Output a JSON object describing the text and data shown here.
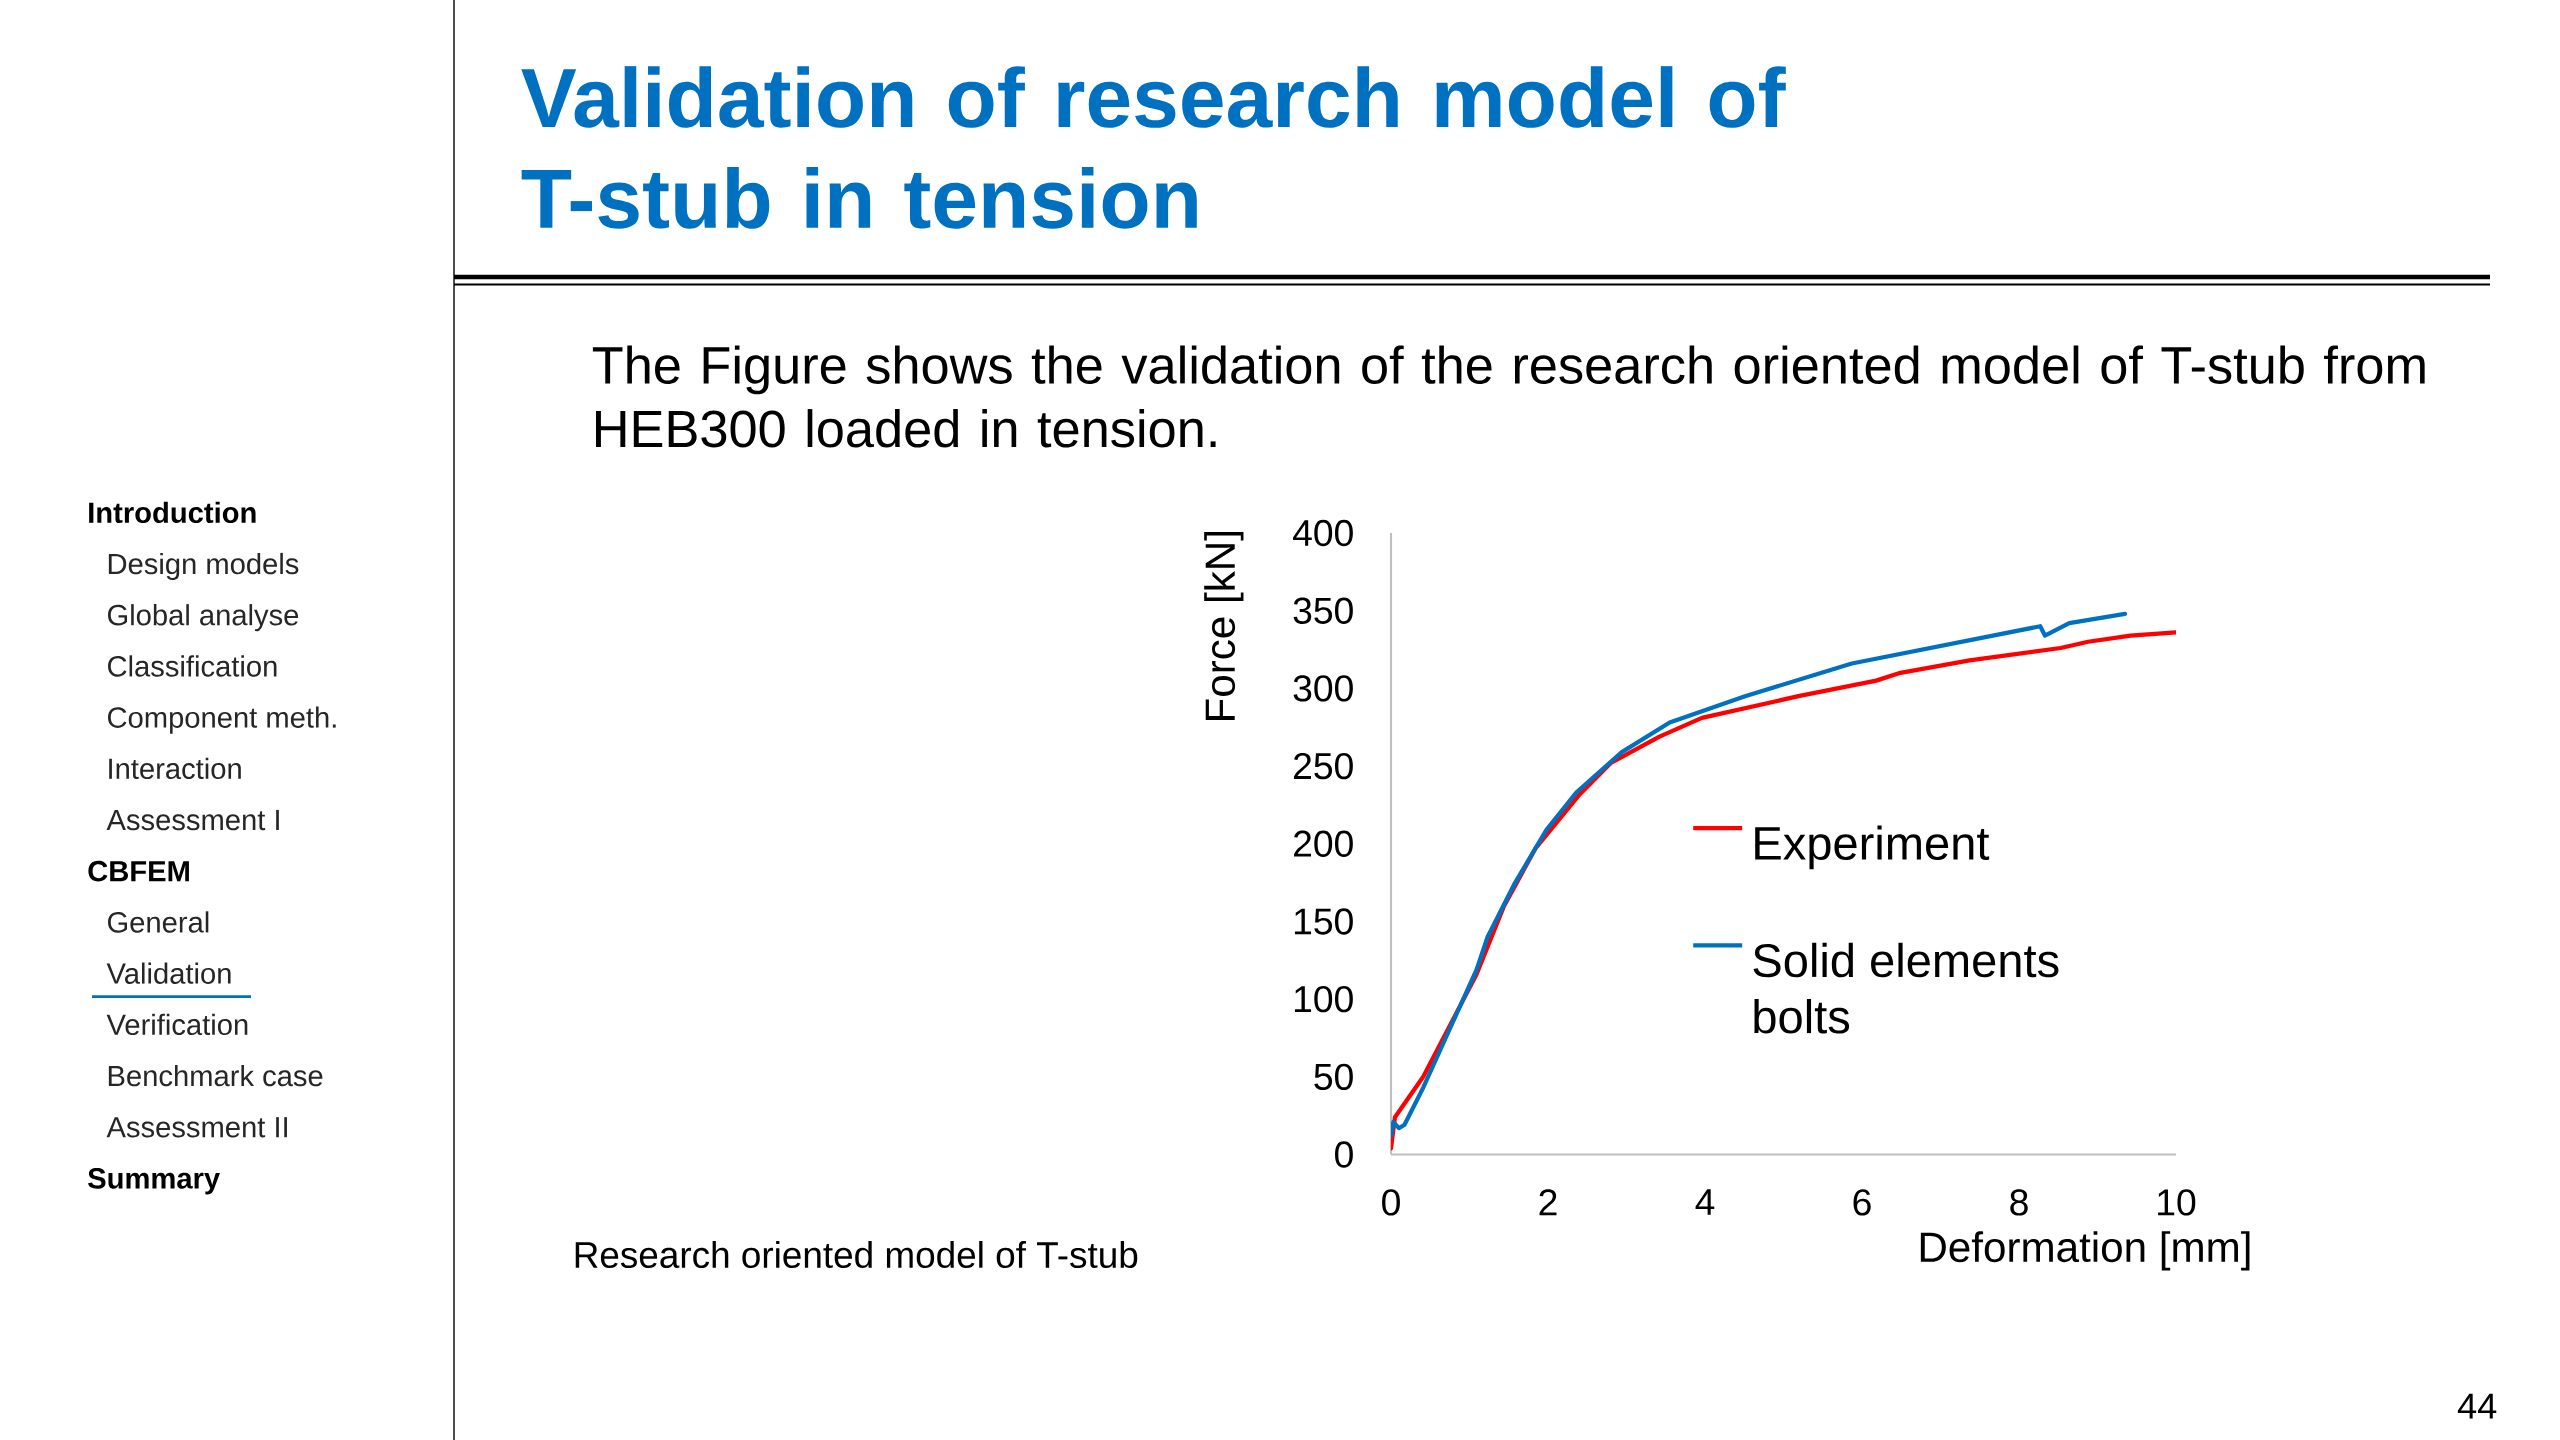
{
  "chart_data": {
    "type": "line",
    "title": "Validation of research model of T-stub in tension",
    "subtitle": "The Figure shows the validation of the research oriented model of T-stub from HEB300 loaded in tension.",
    "xlabel": "Deformation [mm]",
    "ylabel": "Force [kN]",
    "xlim": [
      0,
      10
    ],
    "xticks": [
      0,
      2,
      4,
      6,
      8,
      10
    ],
    "ylim": [
      0,
      400
    ],
    "yticks": [
      0,
      50,
      100,
      150,
      200,
      250,
      300,
      350,
      400
    ],
    "line_style": "solid",
    "legend": "right",
    "series": [
      {
        "name": "Experiment",
        "color": "#ff0000",
        "x": [
          0,
          0.05,
          0.41,
          1.09,
          1.44,
          1.84,
          2.39,
          2.8,
          3.42,
          3.96,
          5.19,
          6.18,
          6.49,
          7.37,
          8.53,
          8.88,
          9.42,
          10
        ],
        "values": [
          4,
          24,
          50,
          116,
          160,
          197,
          231,
          252,
          269,
          281,
          295,
          305,
          310,
          318,
          326,
          330,
          334,
          336
        ]
      },
      {
        "name": "Solid elements bolts",
        "color": "#0070c0",
        "x": [
          0,
          0.03,
          0.1,
          0.17,
          0.41,
          0.75,
          1.09,
          1.23,
          1.57,
          1.98,
          2.36,
          2.94,
          3.55,
          4.51,
          5.87,
          8.27,
          8.33,
          8.64,
          9.35
        ],
        "values": [
          12,
          21,
          17,
          19,
          43,
          81,
          119,
          140,
          174,
          209,
          233,
          259,
          278,
          295,
          316,
          340,
          334,
          342,
          348
        ]
      }
    ],
    "annotations": [
      "Introduction",
      "Design models",
      "Global analyse",
      "Classification",
      "Component meth.",
      "Interaction",
      "Assessment I",
      "CBFEM",
      "General",
      "Validation",
      "Verification",
      "Benchmark case",
      "Assessment II",
      "Summary",
      "Research oriented model of T-stub",
      "44"
    ]
  }
}
